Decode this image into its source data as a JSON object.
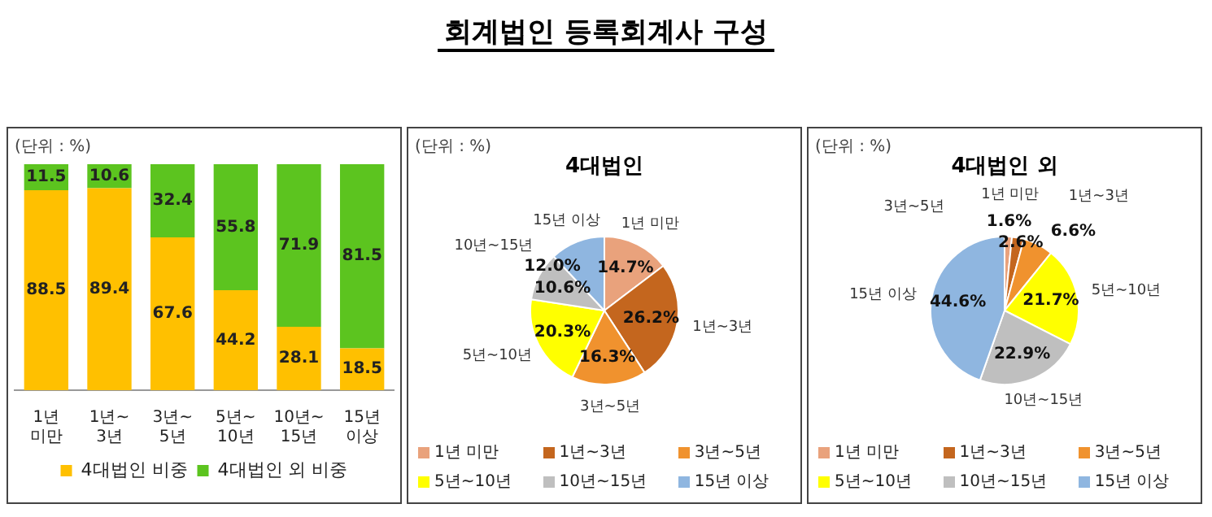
{
  "chart_data": [
    {
      "type": "other",
      "title": "회계법인 등록회계사 구성"
    },
    {
      "type": "bar",
      "annotations": [
        "(단위 : %)"
      ],
      "categories": [
        "1년 미만",
        "1년~3년",
        "3년~5년",
        "5년~10년",
        "10년~15년",
        "15년 이상"
      ],
      "stacked": true,
      "series": [
        {
          "name": "4대법인 비중",
          "color": "#ffc000",
          "values": [
            88.5,
            89.4,
            67.6,
            44.2,
            28.1,
            18.5
          ]
        },
        {
          "name": "4대법인 외 비중",
          "color": "#5cc41f",
          "values": [
            11.5,
            10.6,
            32.4,
            55.8,
            71.9,
            81.5
          ]
        }
      ],
      "ylim": [
        0,
        100
      ],
      "tick_labels": "x",
      "grid": false,
      "legend": "bottom",
      "data_labels": true
    },
    {
      "type": "pie",
      "title": "4대법인",
      "annotations": [
        "(단위 : %)",
        {
          "text": "1년 미만",
          "x": "1년 미만"
        },
        {
          "text": "1년~3년",
          "x": "1년~3년"
        },
        {
          "text": "3년~5년",
          "x": "3년~5년"
        },
        {
          "text": "5년~10년",
          "x": "5년~10년"
        },
        {
          "text": "10년~15년",
          "x": "10년~15년"
        },
        {
          "text": "15년 이상",
          "x": "15년 이상"
        }
      ],
      "categories": [
        "1년 미만",
        "1년~3년",
        "3년~5년",
        "5년~10년",
        "10년~15년",
        "15년 이상"
      ],
      "values": [
        14.7,
        26.2,
        16.3,
        20.3,
        10.6,
        12.0
      ],
      "value_labels": [
        "14.7%",
        "26.2%",
        "16.3%",
        "20.3%",
        "10.6%",
        "12.0%"
      ],
      "colors": [
        "#e9a27c",
        "#c4661e",
        "#f0922e",
        "#ffff00",
        "#bfbfbf",
        "#8fb6e0"
      ],
      "legend": "bottom"
    },
    {
      "type": "pie",
      "title": "4대법인 외",
      "annotations": [
        "(단위 : %)",
        {
          "text": "1년 미만",
          "x": "1년 미만"
        },
        {
          "text": "1년~3년",
          "x": "1년~3년"
        },
        {
          "text": "3년~5년",
          "x": "3년~5년"
        },
        {
          "text": "5년~10년",
          "x": "5년~10년"
        },
        {
          "text": "10년~15년",
          "x": "10년~15년"
        },
        {
          "text": "15년 이상",
          "x": "15년 이상"
        }
      ],
      "categories": [
        "1년 미만",
        "1년~3년",
        "3년~5년",
        "5년~10년",
        "10년~15년",
        "15년 이상"
      ],
      "values": [
        1.6,
        2.6,
        6.6,
        21.7,
        22.9,
        44.6
      ],
      "value_labels": [
        "1.6%",
        "2.6%",
        "6.6%",
        "21.7%",
        "22.9%",
        "44.6%"
      ],
      "colors": [
        "#e9a27c",
        "#c4661e",
        "#f0922e",
        "#ffff00",
        "#bfbfbf",
        "#8fb6e0"
      ],
      "legend": "bottom"
    }
  ]
}
